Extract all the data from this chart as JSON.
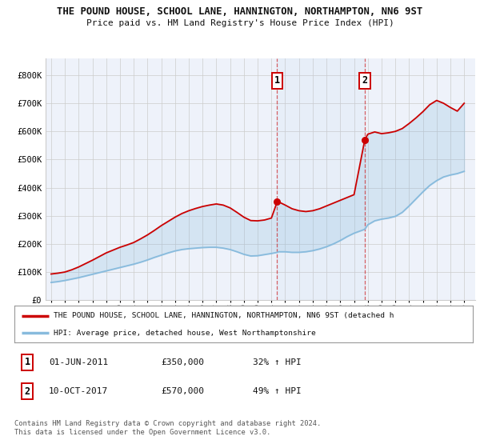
{
  "title": "THE POUND HOUSE, SCHOOL LANE, HANNINGTON, NORTHAMPTON, NN6 9ST",
  "subtitle": "Price paid vs. HM Land Registry's House Price Index (HPI)",
  "ytick_values": [
    0,
    100000,
    200000,
    300000,
    400000,
    500000,
    600000,
    700000,
    800000
  ],
  "ylim": [
    0,
    860000
  ],
  "xlim_start": 1994.6,
  "xlim_end": 2025.8,
  "background_color": "#ffffff",
  "plot_bg_color": "#eef2fa",
  "grid_color": "#cccccc",
  "red_line_color": "#cc0000",
  "blue_line_color": "#88bbdd",
  "sale1_x": 2011.42,
  "sale1_y": 350000,
  "sale2_x": 2017.78,
  "sale2_y": 570000,
  "legend_red_label": "THE POUND HOUSE, SCHOOL LANE, HANNINGTON, NORTHAMPTON, NN6 9ST (detached h",
  "legend_blue_label": "HPI: Average price, detached house, West Northamptonshire",
  "table_row1": [
    "1",
    "01-JUN-2011",
    "£350,000",
    "32% ↑ HPI"
  ],
  "table_row2": [
    "2",
    "10-OCT-2017",
    "£570,000",
    "49% ↑ HPI"
  ],
  "footer": "Contains HM Land Registry data © Crown copyright and database right 2024.\nThis data is licensed under the Open Government Licence v3.0.",
  "x_years": [
    1995.0,
    1995.5,
    1996.0,
    1996.5,
    1997.0,
    1997.5,
    1998.0,
    1998.5,
    1999.0,
    1999.5,
    2000.0,
    2000.5,
    2001.0,
    2001.5,
    2002.0,
    2002.5,
    2003.0,
    2003.5,
    2004.0,
    2004.5,
    2005.0,
    2005.5,
    2006.0,
    2006.5,
    2007.0,
    2007.5,
    2008.0,
    2008.5,
    2009.0,
    2009.5,
    2010.0,
    2010.5,
    2011.0,
    2011.42,
    2011.5,
    2012.0,
    2012.5,
    2013.0,
    2013.5,
    2014.0,
    2014.5,
    2015.0,
    2015.5,
    2016.0,
    2016.5,
    2017.0,
    2017.78,
    2018.0,
    2018.5,
    2019.0,
    2019.5,
    2020.0,
    2020.5,
    2021.0,
    2021.5,
    2022.0,
    2022.5,
    2023.0,
    2023.5,
    2024.0,
    2024.5,
    2025.0
  ],
  "red_y": [
    93000,
    96000,
    100000,
    108000,
    118000,
    130000,
    142000,
    155000,
    168000,
    178000,
    188000,
    196000,
    205000,
    218000,
    232000,
    248000,
    265000,
    280000,
    295000,
    308000,
    318000,
    326000,
    333000,
    338000,
    342000,
    338000,
    328000,
    312000,
    295000,
    283000,
    282000,
    285000,
    292000,
    350000,
    350000,
    338000,
    325000,
    318000,
    315000,
    318000,
    325000,
    335000,
    345000,
    355000,
    365000,
    375000,
    570000,
    590000,
    598000,
    592000,
    595000,
    600000,
    610000,
    628000,
    648000,
    670000,
    695000,
    710000,
    700000,
    685000,
    672000,
    700000
  ],
  "blue_y": [
    63000,
    66000,
    70000,
    75000,
    80000,
    86000,
    92000,
    98000,
    104000,
    110000,
    116000,
    122000,
    128000,
    135000,
    143000,
    152000,
    160000,
    168000,
    175000,
    180000,
    183000,
    185000,
    187000,
    188000,
    188000,
    185000,
    180000,
    172000,
    163000,
    157000,
    158000,
    162000,
    166000,
    170000,
    172000,
    172000,
    170000,
    170000,
    172000,
    176000,
    182000,
    190000,
    200000,
    212000,
    226000,
    238000,
    252000,
    268000,
    282000,
    288000,
    292000,
    298000,
    312000,
    335000,
    360000,
    385000,
    408000,
    425000,
    438000,
    445000,
    450000,
    458000
  ]
}
